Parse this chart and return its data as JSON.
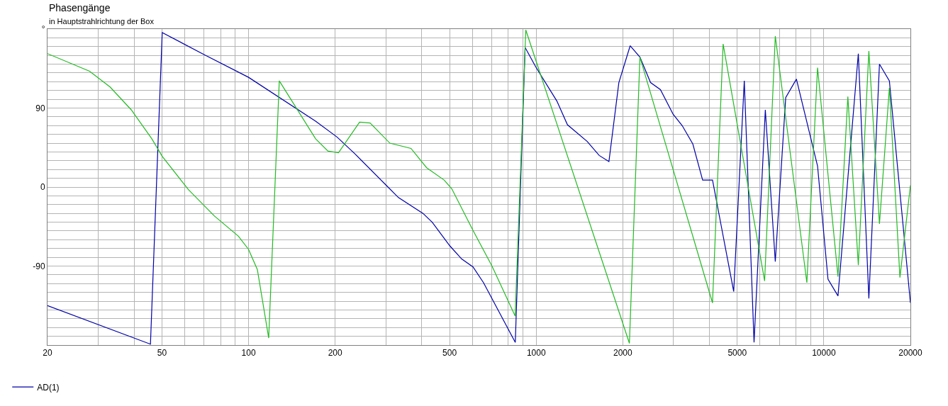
{
  "chart_data": {
    "type": "line",
    "title": "Phasengänge",
    "subtitle": "in Hauptstrahlrichtung der Box",
    "log": "x",
    "grid": true,
    "legend": "bottom left",
    "marker": "none",
    "line_style": "solid",
    "xlim": [
      20,
      20000
    ],
    "ylim": [
      -180,
      180
    ],
    "xticks": [
      20,
      {
        "value": 30,
        "label": null
      },
      {
        "value": 40,
        "label": null
      },
      50,
      {
        "value": 60,
        "label": null
      },
      {
        "value": 70,
        "label": null
      },
      {
        "value": 80,
        "label": null
      },
      {
        "value": 90,
        "label": null
      },
      100,
      200,
      {
        "value": 300,
        "label": null
      },
      {
        "value": 400,
        "label": null
      },
      500,
      {
        "value": 600,
        "label": null
      },
      {
        "value": 700,
        "label": null
      },
      {
        "value": 800,
        "label": null
      },
      {
        "value": 900,
        "label": null
      },
      1000,
      2000,
      {
        "value": 3000,
        "label": null
      },
      {
        "value": 4000,
        "label": null
      },
      5000,
      {
        "value": 6000,
        "label": null
      },
      {
        "value": 7000,
        "label": null
      },
      {
        "value": 8000,
        "label": null
      },
      {
        "value": 9000,
        "label": null
      },
      10000,
      20000
    ],
    "yticks": [
      {
        "value": -180,
        "label": null
      },
      {
        "value": -170,
        "label": null
      },
      {
        "value": -160,
        "label": null
      },
      {
        "value": -150,
        "label": null
      },
      {
        "value": -140,
        "label": null
      },
      {
        "value": -130,
        "label": null
      },
      {
        "value": -120,
        "label": null
      },
      {
        "value": -110,
        "label": null
      },
      {
        "value": -100,
        "label": null
      },
      -90,
      {
        "value": -80,
        "label": null
      },
      {
        "value": -70,
        "label": null
      },
      {
        "value": -60,
        "label": null
      },
      {
        "value": -50,
        "label": null
      },
      {
        "value": -40,
        "label": null
      },
      {
        "value": -30,
        "label": null
      },
      {
        "value": -20,
        "label": null
      },
      {
        "value": -10,
        "label": null
      },
      0,
      {
        "value": 10,
        "label": null
      },
      {
        "value": 20,
        "label": null
      },
      {
        "value": 30,
        "label": null
      },
      {
        "value": 40,
        "label": null
      },
      {
        "value": 50,
        "label": null
      },
      {
        "value": 60,
        "label": null
      },
      {
        "value": 70,
        "label": null
      },
      {
        "value": 80,
        "label": null
      },
      90,
      {
        "value": 100,
        "label": null
      },
      {
        "value": 110,
        "label": null
      },
      {
        "value": 120,
        "label": null
      },
      {
        "value": 130,
        "label": null
      },
      {
        "value": 140,
        "label": null
      },
      {
        "value": 150,
        "label": null
      },
      {
        "value": 160,
        "label": null
      },
      {
        "value": 170,
        "label": null
      },
      {
        "value": 180,
        "label": "°"
      }
    ],
    "series": [
      {
        "name": "AD(1)",
        "color": "#0000aa",
        "x": [
          20,
          45.6,
          50.1,
          70,
          100,
          171,
          203,
          234,
          301,
          332,
          404,
          435,
          501,
          551,
          603,
          656,
          846,
          915,
          996,
          1180,
          1284,
          1504,
          1656,
          1790,
          1938,
          2122,
          2294,
          2498,
          2703,
          2992,
          3218,
          3504,
          3790,
          4102,
          4860,
          5290,
          5720,
          6260,
          6780,
          7370,
          8030,
          9510,
          10340,
          11200,
          13180,
          14340,
          15610,
          16900,
          20000
        ],
        "values": [
          -135,
          -179,
          176,
          151,
          125,
          75,
          57,
          38,
          2,
          -12,
          -30,
          -40,
          -67,
          -82,
          -91,
          -109,
          -177,
          159,
          137,
          98,
          71,
          52,
          36,
          29,
          119,
          161,
          148,
          119,
          111,
          83,
          70,
          49,
          8,
          8,
          -119,
          121,
          -177,
          88,
          -85,
          102,
          123,
          24,
          -105,
          -124,
          152,
          -127,
          140,
          121,
          -132
        ]
      },
      {
        "color": "#22bb22",
        "x": [
          20,
          28,
          33,
          39.1,
          46.1,
          50.1,
          61.8,
          76.1,
          92.2,
          100,
          107.3,
          117.5,
          127.9,
          171,
          188.7,
          205.4,
          243.2,
          264.6,
          310,
          367,
          416,
          478.5,
          509,
          600,
          702,
          845,
          920,
          2109,
          2294,
          4102,
          4466,
          6226,
          6780,
          8730,
          9510,
          11200,
          12120,
          13180,
          14340,
          15610,
          16900,
          18390,
          20000
        ],
        "values": [
          152,
          132,
          114,
          88,
          55,
          35,
          -3,
          -33,
          -56,
          -71,
          -94,
          -172,
          121,
          55,
          41,
          39,
          74,
          73,
          50,
          44,
          22,
          8,
          -2,
          -48,
          -90,
          -147,
          179,
          -178,
          148,
          -132,
          163,
          -107,
          172,
          -109,
          136,
          -102,
          103,
          -89,
          155,
          -42,
          113,
          -103,
          2
        ]
      }
    ]
  }
}
